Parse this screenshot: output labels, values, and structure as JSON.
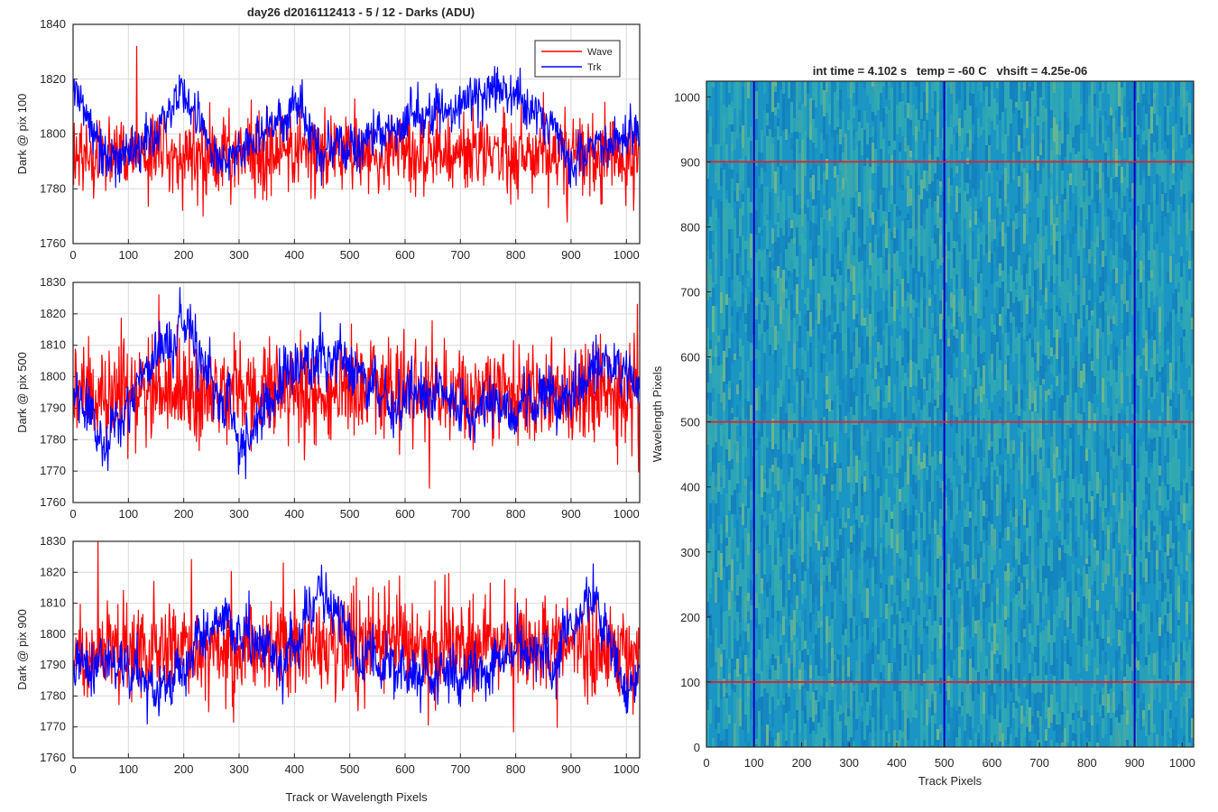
{
  "figure": {
    "title": "day26 d2016112413 - 5 / 12 - Darks (ADU)",
    "background": "#ffffff"
  },
  "legend": {
    "entries": [
      {
        "name": "Wave",
        "color": "#ff0000"
      },
      {
        "name": "Trk",
        "color": "#0000ff"
      }
    ],
    "placement": "top-right"
  },
  "chart_data": [
    {
      "type": "line",
      "title": "day26 d2016112413 - 5 / 12 - Darks (ADU)",
      "xlabel": "",
      "ylabel": "Dark @ pix 100",
      "xlim": [
        0,
        1024
      ],
      "ylim": [
        1760,
        1840
      ],
      "xticks": [
        0,
        100,
        200,
        300,
        400,
        500,
        600,
        700,
        800,
        900,
        1000
      ],
      "xticklabels": [
        "0",
        "100",
        "200",
        "300",
        "400",
        "500",
        "600",
        "700",
        "800",
        "900",
        "1000"
      ],
      "yticks": [
        1760,
        1780,
        1800,
        1820,
        1840
      ],
      "grid": true,
      "legend": "top-right",
      "series": [
        {
          "name": "Wave",
          "color": "#ff0000",
          "n": 1024,
          "mean": 1793,
          "noise": 7,
          "drift": 0,
          "spikes": [
            {
              "x": 115,
              "y": 1832
            },
            {
              "x": 235,
              "y": 1770
            }
          ]
        },
        {
          "name": "Trk",
          "color": "#0000ff",
          "n": 1024,
          "mean": 1798,
          "noise": 4,
          "drift": 8,
          "anchors": [
            [
              0,
              1815
            ],
            [
              60,
              1790
            ],
            [
              120,
              1795
            ],
            [
              200,
              1815
            ],
            [
              260,
              1792
            ],
            [
              350,
              1800
            ],
            [
              400,
              1810
            ],
            [
              450,
              1800
            ],
            [
              500,
              1795
            ],
            [
              700,
              1810
            ],
            [
              760,
              1820
            ],
            [
              870,
              1802
            ],
            [
              900,
              1788
            ],
            [
              1000,
              1800
            ],
            [
              1024,
              1800
            ]
          ]
        }
      ]
    },
    {
      "type": "line",
      "xlabel": "",
      "ylabel": "Dark @ pix 500",
      "xlim": [
        0,
        1024
      ],
      "ylim": [
        1760,
        1830
      ],
      "xticks": [
        0,
        100,
        200,
        300,
        400,
        500,
        600,
        700,
        800,
        900,
        1000
      ],
      "xticklabels": [
        "0",
        "100",
        "200",
        "300",
        "400",
        "500",
        "600",
        "700",
        "800",
        "900",
        "1000"
      ],
      "yticks": [
        1760,
        1770,
        1780,
        1790,
        1800,
        1810,
        1820,
        1830
      ],
      "grid": true,
      "series": [
        {
          "name": "Wave",
          "color": "#ff0000",
          "n": 1024,
          "mean": 1795,
          "noise": 8,
          "drift": 0,
          "spikes": [
            {
              "x": 155,
              "y": 1826
            },
            {
              "x": 1020,
              "y": 1823
            }
          ]
        },
        {
          "name": "Trk",
          "color": "#0000ff",
          "n": 1024,
          "mean": 1796,
          "noise": 4,
          "drift": 8,
          "anchors": [
            [
              0,
              1795
            ],
            [
              60,
              1782
            ],
            [
              150,
              1805
            ],
            [
              210,
              1815
            ],
            [
              300,
              1778
            ],
            [
              360,
              1795
            ],
            [
              450,
              1808
            ],
            [
              560,
              1795
            ],
            [
              650,
              1792
            ],
            [
              720,
              1790
            ],
            [
              900,
              1792
            ],
            [
              950,
              1805
            ],
            [
              1024,
              1800
            ]
          ]
        }
      ]
    },
    {
      "type": "line",
      "xlabel": "Track or Wavelength Pixels",
      "ylabel": "Dark @ pix 900",
      "xlim": [
        0,
        1024
      ],
      "ylim": [
        1760,
        1830
      ],
      "xticks": [
        0,
        100,
        200,
        300,
        400,
        500,
        600,
        700,
        800,
        900,
        1000
      ],
      "xticklabels": [
        "0",
        "100",
        "200",
        "300",
        "400",
        "500",
        "600",
        "700",
        "800",
        "900",
        "1000"
      ],
      "yticks": [
        1760,
        1770,
        1780,
        1790,
        1800,
        1810,
        1820,
        1830
      ],
      "grid": true,
      "series": [
        {
          "name": "Wave",
          "color": "#ff0000",
          "n": 1024,
          "mean": 1796,
          "noise": 8,
          "drift": 0,
          "spikes": [
            {
              "x": 45,
              "y": 1830
            },
            {
              "x": 380,
              "y": 1823
            }
          ]
        },
        {
          "name": "Trk",
          "color": "#0000ff",
          "n": 1024,
          "mean": 1792,
          "noise": 4,
          "drift": 7,
          "anchors": [
            [
              0,
              1790
            ],
            [
              100,
              1792
            ],
            [
              160,
              1780
            ],
            [
              260,
              1802
            ],
            [
              380,
              1790
            ],
            [
              450,
              1812
            ],
            [
              520,
              1795
            ],
            [
              700,
              1785
            ],
            [
              800,
              1795
            ],
            [
              850,
              1790
            ],
            [
              940,
              1810
            ],
            [
              1000,
              1785
            ],
            [
              1024,
              1788
            ]
          ]
        }
      ]
    },
    {
      "type": "heatmap",
      "title": "int time = 4.102 s   temp = -60 C   vhsift = 4.25e-06",
      "xlabel": "Track Pixels",
      "ylabel": "Wavelength Pixels",
      "xlim": [
        0,
        1024
      ],
      "ylim": [
        0,
        1024
      ],
      "xticks": [
        0,
        100,
        200,
        300,
        400,
        500,
        600,
        700,
        800,
        900,
        1000
      ],
      "xticklabels": [
        "0",
        "100",
        "200",
        "300",
        "400",
        "500",
        "600",
        "700",
        "800",
        "900",
        "1000"
      ],
      "yticks": [
        0,
        100,
        200,
        300,
        400,
        500,
        600,
        700,
        800,
        900,
        1000
      ],
      "yticklabels": [
        "0",
        "100",
        "200",
        "300",
        "400",
        "500",
        "600",
        "700",
        "800",
        "900",
        "1000"
      ],
      "colors": {
        "base": "#1a95c4",
        "light": "#3fb5a8",
        "highlight": "#9fcf6a",
        "dark": "#0d6fb8"
      },
      "vlines": {
        "x": [
          100,
          500,
          900
        ],
        "color": "#0000c8"
      },
      "hlines": {
        "y": [
          100,
          500,
          900
        ],
        "color": "#e0202a"
      }
    }
  ]
}
